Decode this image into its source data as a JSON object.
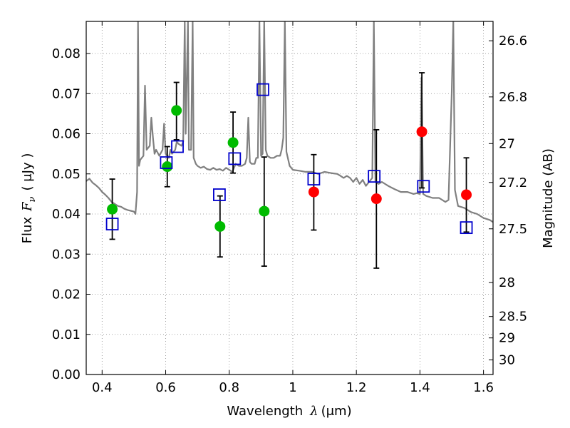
{
  "chart_data": {
    "type": "scatter",
    "xlabel": {
      "text": "Wavelength",
      "symbol": "λ",
      "unit": "(μm)"
    },
    "ylabel": {
      "text": "Flux",
      "symbol": "F",
      "subscript": "ν",
      "unit": "( μJy )"
    },
    "y2label": "Magnitude (AB)",
    "xlim": [
      0.35,
      1.63
    ],
    "ylim": [
      0.0,
      0.088
    ],
    "grid": true,
    "x_ticks": [
      0.4,
      0.6,
      0.8,
      1.0,
      1.2,
      1.4,
      1.6
    ],
    "x_tick_labels": [
      "0.4",
      "0.6",
      "0.8",
      "1",
      "1.2",
      "1.4",
      "1.6"
    ],
    "y_ticks": [
      0.0,
      0.01,
      0.02,
      0.03,
      0.04,
      0.05,
      0.06,
      0.07,
      0.08
    ],
    "y_tick_labels": [
      "0.00",
      "0.01",
      "0.02",
      "0.03",
      "0.04",
      "0.05",
      "0.06",
      "0.07",
      "0.08"
    ],
    "mag_ticks": [
      {
        "mag": 26.6,
        "label": "26.6"
      },
      {
        "mag": 26.8,
        "label": "26.8"
      },
      {
        "mag": 27.0,
        "label": "27"
      },
      {
        "mag": 27.2,
        "label": "27.2"
      },
      {
        "mag": 27.5,
        "label": "27.5"
      },
      {
        "mag": 28.0,
        "label": "28"
      },
      {
        "mag": 28.5,
        "label": "28.5"
      },
      {
        "mag": 29.0,
        "label": "29"
      },
      {
        "mag": 30.0,
        "label": "30"
      }
    ],
    "colors": {
      "model": "#808080",
      "green": "#00bb00",
      "red": "#ff0000",
      "blue": "#0000cc",
      "error": "#000000",
      "grid": "#888888"
    },
    "model_spectrum": [
      [
        0.35,
        0.0482
      ],
      [
        0.36,
        0.0488
      ],
      [
        0.37,
        0.0478
      ],
      [
        0.38,
        0.0472
      ],
      [
        0.39,
        0.0465
      ],
      [
        0.4,
        0.0455
      ],
      [
        0.41,
        0.0448
      ],
      [
        0.42,
        0.044
      ],
      [
        0.43,
        0.043
      ],
      [
        0.44,
        0.0425
      ],
      [
        0.45,
        0.042
      ],
      [
        0.46,
        0.0418
      ],
      [
        0.47,
        0.0413
      ],
      [
        0.48,
        0.041
      ],
      [
        0.49,
        0.0408
      ],
      [
        0.5,
        0.0406
      ],
      [
        0.505,
        0.04
      ],
      [
        0.51,
        0.0455
      ],
      [
        0.513,
        0.088
      ],
      [
        0.516,
        0.052
      ],
      [
        0.52,
        0.0535
      ],
      [
        0.53,
        0.0545
      ],
      [
        0.535,
        0.072
      ],
      [
        0.54,
        0.056
      ],
      [
        0.55,
        0.057
      ],
      [
        0.555,
        0.064
      ],
      [
        0.56,
        0.059
      ],
      [
        0.565,
        0.055
      ],
      [
        0.57,
        0.056
      ],
      [
        0.58,
        0.0545
      ],
      [
        0.59,
        0.056
      ],
      [
        0.595,
        0.0625
      ],
      [
        0.6,
        0.055
      ],
      [
        0.61,
        0.054
      ],
      [
        0.615,
        0.056
      ],
      [
        0.62,
        0.055
      ],
      [
        0.63,
        0.056
      ],
      [
        0.635,
        0.058
      ],
      [
        0.64,
        0.0575
      ],
      [
        0.65,
        0.057
      ],
      [
        0.655,
        0.058
      ],
      [
        0.66,
        0.088
      ],
      [
        0.663,
        0.06
      ],
      [
        0.67,
        0.088
      ],
      [
        0.673,
        0.056
      ],
      [
        0.68,
        0.056
      ],
      [
        0.685,
        0.088
      ],
      [
        0.688,
        0.054
      ],
      [
        0.695,
        0.0525
      ],
      [
        0.7,
        0.052
      ],
      [
        0.71,
        0.0515
      ],
      [
        0.72,
        0.0518
      ],
      [
        0.73,
        0.0512
      ],
      [
        0.74,
        0.051
      ],
      [
        0.75,
        0.0515
      ],
      [
        0.76,
        0.051
      ],
      [
        0.77,
        0.0512
      ],
      [
        0.78,
        0.0508
      ],
      [
        0.79,
        0.0515
      ],
      [
        0.8,
        0.051
      ],
      [
        0.81,
        0.0505
      ],
      [
        0.82,
        0.0525
      ],
      [
        0.83,
        0.052
      ],
      [
        0.84,
        0.052
      ],
      [
        0.85,
        0.0525
      ],
      [
        0.855,
        0.054
      ],
      [
        0.86,
        0.064
      ],
      [
        0.865,
        0.053
      ],
      [
        0.87,
        0.0525
      ],
      [
        0.88,
        0.0525
      ],
      [
        0.885,
        0.054
      ],
      [
        0.89,
        0.054
      ],
      [
        0.895,
        0.088
      ],
      [
        0.9,
        0.0545
      ],
      [
        0.905,
        0.055
      ],
      [
        0.91,
        0.088
      ],
      [
        0.915,
        0.056
      ],
      [
        0.92,
        0.0545
      ],
      [
        0.93,
        0.054
      ],
      [
        0.94,
        0.054
      ],
      [
        0.95,
        0.0545
      ],
      [
        0.96,
        0.0545
      ],
      [
        0.965,
        0.056
      ],
      [
        0.97,
        0.059
      ],
      [
        0.975,
        0.088
      ],
      [
        0.98,
        0.0555
      ],
      [
        0.99,
        0.052
      ],
      [
        1.0,
        0.051
      ],
      [
        1.02,
        0.0508
      ],
      [
        1.04,
        0.0505
      ],
      [
        1.06,
        0.0505
      ],
      [
        1.08,
        0.05
      ],
      [
        1.1,
        0.0505
      ],
      [
        1.12,
        0.0502
      ],
      [
        1.14,
        0.05
      ],
      [
        1.15,
        0.0495
      ],
      [
        1.16,
        0.049
      ],
      [
        1.17,
        0.0495
      ],
      [
        1.18,
        0.049
      ],
      [
        1.19,
        0.048
      ],
      [
        1.2,
        0.049
      ],
      [
        1.21,
        0.0475
      ],
      [
        1.22,
        0.0485
      ],
      [
        1.23,
        0.047
      ],
      [
        1.24,
        0.048
      ],
      [
        1.25,
        0.049
      ],
      [
        1.255,
        0.088
      ],
      [
        1.26,
        0.048
      ],
      [
        1.27,
        0.0475
      ],
      [
        1.28,
        0.048
      ],
      [
        1.3,
        0.047
      ],
      [
        1.32,
        0.0462
      ],
      [
        1.34,
        0.0455
      ],
      [
        1.36,
        0.0455
      ],
      [
        1.38,
        0.045
      ],
      [
        1.39,
        0.0452
      ],
      [
        1.4,
        0.045
      ],
      [
        1.405,
        0.074
      ],
      [
        1.41,
        0.045
      ],
      [
        1.42,
        0.0445
      ],
      [
        1.44,
        0.044
      ],
      [
        1.46,
        0.044
      ],
      [
        1.48,
        0.043
      ],
      [
        1.49,
        0.0435
      ],
      [
        1.5,
        0.07
      ],
      [
        1.505,
        0.088
      ],
      [
        1.51,
        0.046
      ],
      [
        1.52,
        0.042
      ],
      [
        1.54,
        0.0415
      ],
      [
        1.56,
        0.0405
      ],
      [
        1.58,
        0.04
      ],
      [
        1.6,
        0.039
      ],
      [
        1.62,
        0.0385
      ],
      [
        1.63,
        0.038
      ]
    ],
    "series": [
      {
        "marker": "circle",
        "color": "green",
        "points": [
          {
            "x": 0.432,
            "y": 0.0412,
            "err": [
              0.0337,
              0.0487
            ]
          },
          {
            "x": 0.605,
            "y": 0.0518,
            "err": [
              0.0468,
              0.0568
            ]
          },
          {
            "x": 0.634,
            "y": 0.0658,
            "err": [
              0.0585,
              0.0728
            ]
          },
          {
            "x": 0.771,
            "y": 0.0369,
            "err": [
              0.0293,
              0.0445
            ]
          },
          {
            "x": 0.812,
            "y": 0.0578,
            "err": [
              0.0502,
              0.0654
            ]
          },
          {
            "x": 0.91,
            "y": 0.0407,
            "err": [
              0.027,
              0.0542
            ]
          }
        ]
      },
      {
        "marker": "circle",
        "color": "red",
        "points": [
          {
            "x": 1.066,
            "y": 0.0455,
            "err": [
              0.036,
              0.0548
            ]
          },
          {
            "x": 1.263,
            "y": 0.0438,
            "err": [
              0.0265,
              0.061
            ]
          },
          {
            "x": 1.406,
            "y": 0.0605,
            "err": [
              0.0465,
              0.0752
            ]
          },
          {
            "x": 1.546,
            "y": 0.0448,
            "err": [
              0.0355,
              0.054
            ]
          }
        ]
      },
      {
        "marker": "square",
        "color": "blue",
        "points": [
          {
            "x": 0.432,
            "y": 0.0375
          },
          {
            "x": 0.602,
            "y": 0.0528
          },
          {
            "x": 0.637,
            "y": 0.0568
          },
          {
            "x": 0.769,
            "y": 0.0448
          },
          {
            "x": 0.817,
            "y": 0.0538
          },
          {
            "x": 0.906,
            "y": 0.071
          },
          {
            "x": 1.066,
            "y": 0.0487
          },
          {
            "x": 1.256,
            "y": 0.0494
          },
          {
            "x": 1.411,
            "y": 0.0469
          },
          {
            "x": 1.546,
            "y": 0.0366
          }
        ]
      }
    ]
  }
}
